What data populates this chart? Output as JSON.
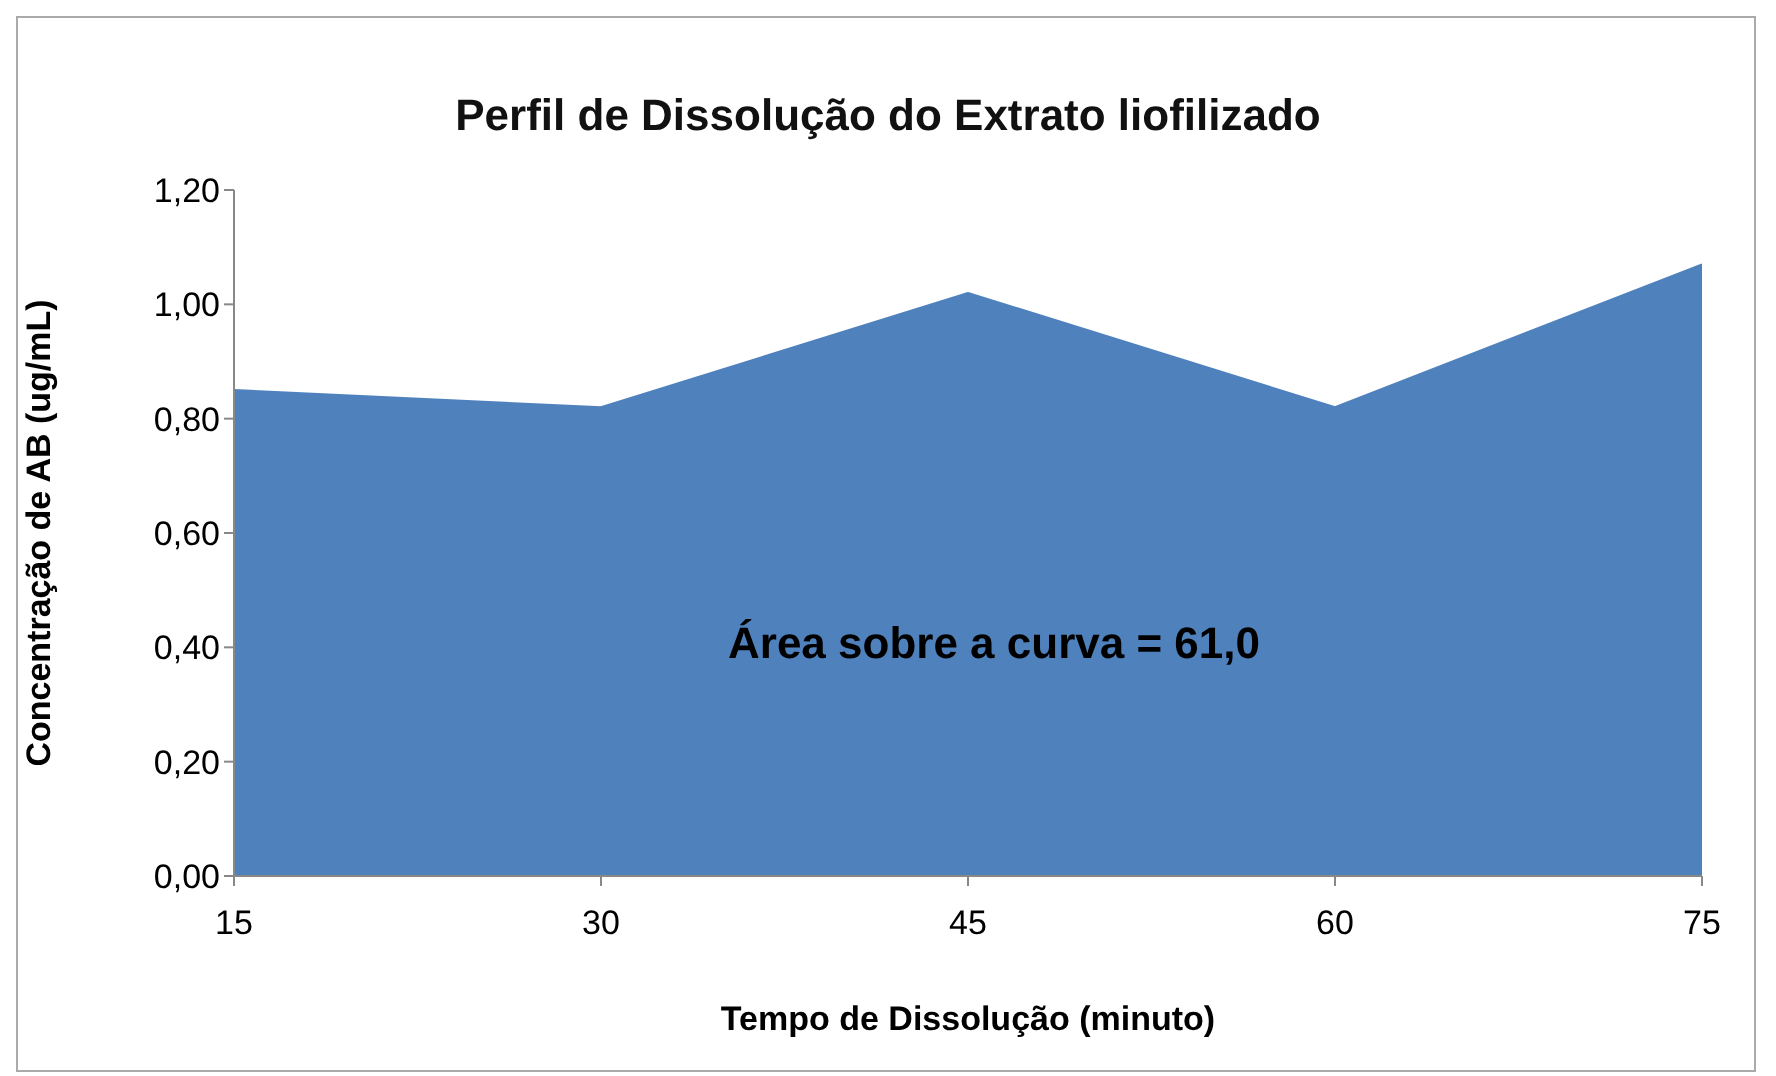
{
  "chart_data": {
    "type": "area",
    "title": "Perfil de Dissolução do Extrato liofilizado",
    "xlabel": "Tempo de Dissolução (minuto)",
    "ylabel": "Concentração de AB (ug/mL)",
    "x": [
      15,
      30,
      45,
      60,
      75
    ],
    "series": [
      {
        "color": "#4f81bd",
        "values": [
          0.85,
          0.82,
          1.02,
          0.82,
          1.07
        ]
      }
    ],
    "xlim": [
      15,
      75
    ],
    "xticks": [
      15,
      30,
      45,
      60,
      75
    ],
    "ylim": [
      0,
      1.2
    ],
    "yticks": [
      {
        "value": 0,
        "label": "0,00"
      },
      {
        "value": 0.2,
        "label": "0,20"
      },
      {
        "value": 0.4,
        "label": "0,40"
      },
      {
        "value": 0.6,
        "label": "0,60"
      },
      {
        "value": 0.8,
        "label": "0,80"
      },
      {
        "value": 1.0,
        "label": "1,00"
      },
      {
        "value": 1.2,
        "label": "1,20"
      }
    ],
    "annotations": [
      "Área sobre a curva = 61,0"
    ],
    "grid": false,
    "legend": false
  }
}
